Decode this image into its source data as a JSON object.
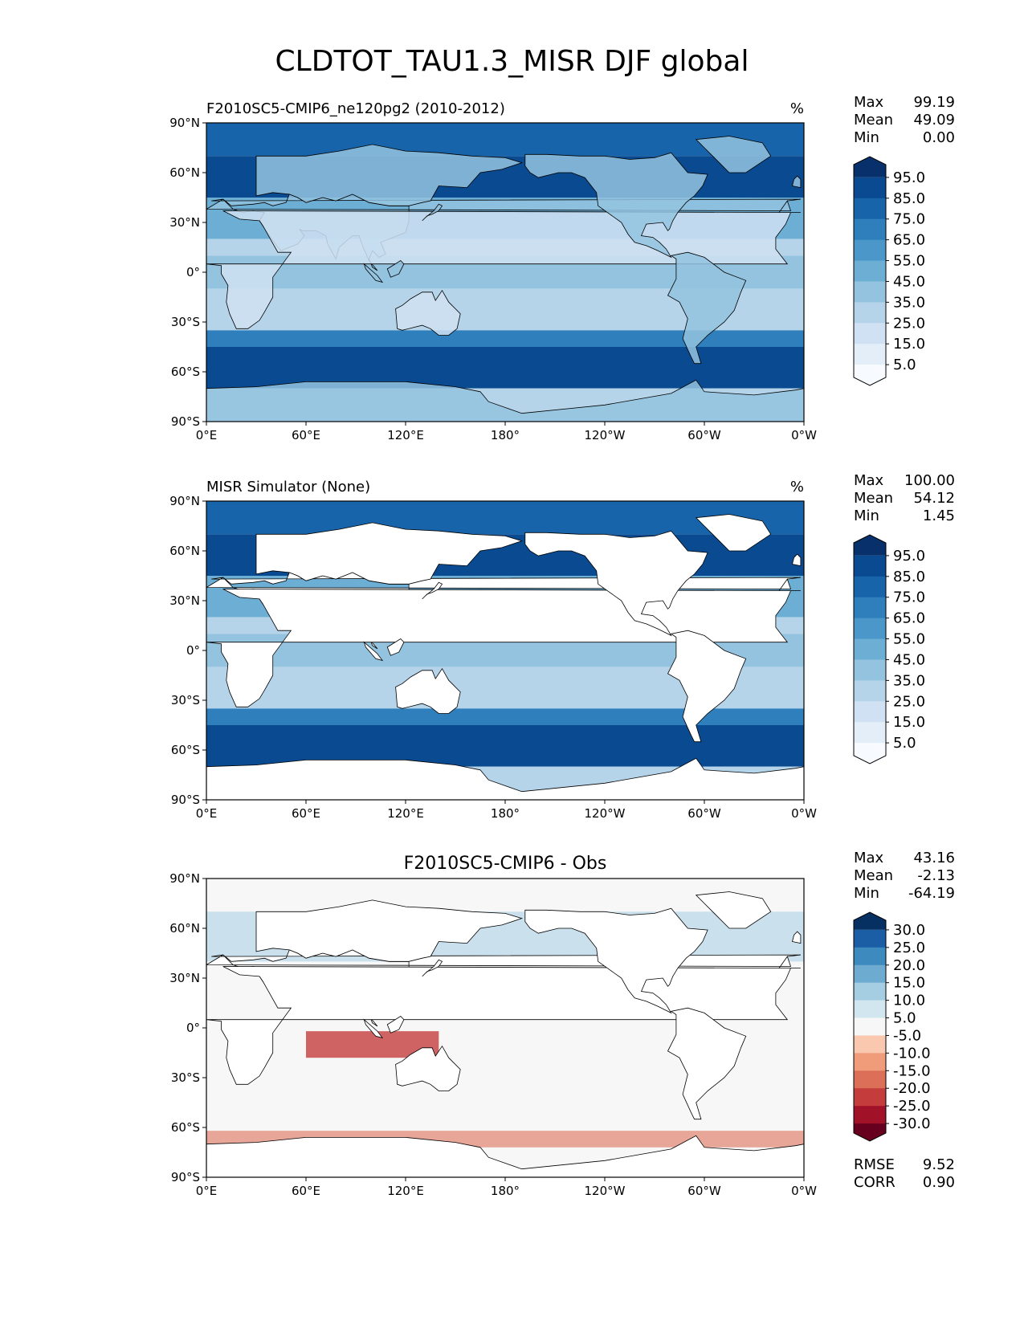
{
  "figure": {
    "title": "CLDTOT_TAU1.3_MISR DJF global"
  },
  "axes": {
    "lat_ticks": [
      "90°N",
      "60°N",
      "30°N",
      "0°",
      "30°S",
      "60°S",
      "90°S"
    ],
    "lon_ticks": [
      "0°E",
      "60°E",
      "120°E",
      "180°",
      "120°W",
      "60°W",
      "0°W"
    ]
  },
  "panels": [
    {
      "id": "model",
      "title_left": "F2010SC5-CMIP6_ne120pg2 (2010-2012)",
      "title_center": "",
      "units": "%",
      "stats": [
        {
          "label": "Max",
          "value": "99.19"
        },
        {
          "label": "Mean",
          "value": "49.09"
        },
        {
          "label": "Min",
          "value": "0.00"
        }
      ],
      "colorbar": {
        "colors": [
          "#f7fbff",
          "#e3eef9",
          "#cfe1f2",
          "#b5d4e9",
          "#93c3df",
          "#6daed5",
          "#4b97c9",
          "#2f7fbc",
          "#1864aa",
          "#0a4a90",
          "#08306b"
        ],
        "labels": [
          "95.0",
          "85.0",
          "75.0",
          "65.0",
          "55.0",
          "45.0",
          "35.0",
          "25.0",
          "15.0",
          "5.0"
        ]
      },
      "bottom_stats": []
    },
    {
      "id": "obs",
      "title_left": "MISR Simulator (None)",
      "title_center": "",
      "units": "%",
      "stats": [
        {
          "label": "Max",
          "value": "100.00"
        },
        {
          "label": "Mean",
          "value": "54.12"
        },
        {
          "label": "Min",
          "value": "1.45"
        }
      ],
      "colorbar": {
        "colors": [
          "#f7fbff",
          "#e3eef9",
          "#cfe1f2",
          "#b5d4e9",
          "#93c3df",
          "#6daed5",
          "#4b97c9",
          "#2f7fbc",
          "#1864aa",
          "#0a4a90",
          "#08306b"
        ],
        "labels": [
          "95.0",
          "85.0",
          "75.0",
          "65.0",
          "55.0",
          "45.0",
          "35.0",
          "25.0",
          "15.0",
          "5.0"
        ]
      },
      "bottom_stats": []
    },
    {
      "id": "diff",
      "title_left": "",
      "title_center": "F2010SC5-CMIP6 - Obs",
      "units": "",
      "stats": [
        {
          "label": "Max",
          "value": "43.16"
        },
        {
          "label": "Mean",
          "value": "-2.13"
        },
        {
          "label": "Min",
          "value": "-64.19"
        }
      ],
      "colorbar": {
        "colors": [
          "#67001f",
          "#a11228",
          "#c43c3c",
          "#dc6f58",
          "#f09c7b",
          "#fac8af",
          "#f7f7f7",
          "#d2e6f0",
          "#a5cee3",
          "#6eabd0",
          "#3c8abe",
          "#1c5ea6",
          "#053061"
        ],
        "labels": [
          "30.0",
          "25.0",
          "20.0",
          "15.0",
          "10.0",
          "5.0",
          "-5.0",
          "-10.0",
          "-15.0",
          "-20.0",
          "-25.0",
          "-30.0"
        ]
      },
      "bottom_stats": [
        {
          "label": "RMSE",
          "value": "9.52"
        },
        {
          "label": "CORR",
          "value": "0.90"
        }
      ]
    }
  ],
  "chart_data": [
    {
      "type": "heatmap",
      "title": "F2010SC5-CMIP6_ne120pg2 (2010-2012)",
      "units": "%",
      "x_range": [
        "0°E",
        "0°W"
      ],
      "y_range": [
        "90°S",
        "90°N"
      ],
      "colorbar_levels": [
        5,
        15,
        25,
        35,
        45,
        55,
        65,
        75,
        85,
        95
      ],
      "stats": {
        "max": 99.19,
        "mean": 49.09,
        "min": 0.0
      }
    },
    {
      "type": "heatmap",
      "title": "MISR Simulator (None)",
      "units": "%",
      "x_range": [
        "0°E",
        "0°W"
      ],
      "y_range": [
        "90°S",
        "90°N"
      ],
      "colorbar_levels": [
        5,
        15,
        25,
        35,
        45,
        55,
        65,
        75,
        85,
        95
      ],
      "stats": {
        "max": 100.0,
        "mean": 54.12,
        "min": 1.45
      }
    },
    {
      "type": "heatmap",
      "title": "F2010SC5-CMIP6 - Obs",
      "units": "",
      "x_range": [
        "0°E",
        "0°W"
      ],
      "y_range": [
        "90°S",
        "90°N"
      ],
      "colorbar_levels": [
        -30,
        -25,
        -20,
        -15,
        -10,
        -5,
        5,
        10,
        15,
        20,
        25,
        30
      ],
      "stats": {
        "max": 43.16,
        "mean": -2.13,
        "min": -64.19,
        "rmse": 9.52,
        "corr": 0.9
      }
    }
  ]
}
